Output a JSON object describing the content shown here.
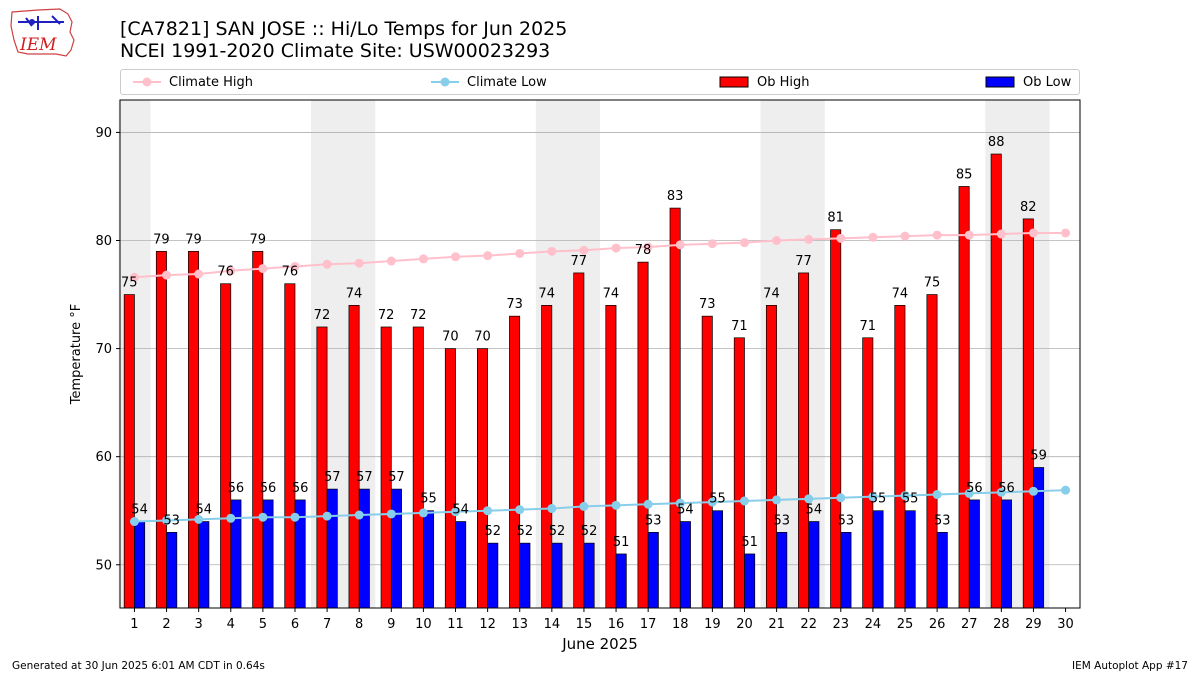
{
  "header": {
    "title_line1": "[CA7821] SAN JOSE :: Hi/Lo Temps for Jun 2025",
    "title_line2": "NCEI 1991-2020 Climate Site: USW00023293",
    "logo_text": "IEM"
  },
  "legend": {
    "climate_high": "Climate High",
    "climate_low": "Climate Low",
    "ob_high": "Ob High",
    "ob_low": "Ob Low"
  },
  "footer": {
    "left": "Generated at 30 Jun 2025 6:01 AM CDT in 0.64s",
    "right": "IEM Autoplot App #17"
  },
  "colors": {
    "ob_high": "#ff0000",
    "ob_low": "#0000ff",
    "climate_high": "#ffc0cb",
    "climate_low": "#87ceeb",
    "weekend_shade": "#eeeeee",
    "grid": "#b0b0b0"
  },
  "chart_data": {
    "type": "bar",
    "xlabel": "June 2025",
    "ylabel": "Temperature °F",
    "ylim": [
      46,
      93
    ],
    "yticks": [
      50,
      60,
      70,
      80,
      90
    ],
    "grid": "horizontal",
    "legend_position": "top",
    "days": [
      1,
      2,
      3,
      4,
      5,
      6,
      7,
      8,
      9,
      10,
      11,
      12,
      13,
      14,
      15,
      16,
      17,
      18,
      19,
      20,
      21,
      22,
      23,
      24,
      25,
      26,
      27,
      28,
      29,
      30
    ],
    "weekend_bands": [
      [
        1,
        1
      ],
      [
        7,
        8
      ],
      [
        14,
        15
      ],
      [
        21,
        22
      ],
      [
        28,
        29
      ]
    ],
    "series": [
      {
        "name": "Ob High",
        "kind": "bar",
        "values": [
          75,
          79,
          79,
          76,
          79,
          76,
          72,
          74,
          72,
          72,
          70,
          70,
          73,
          74,
          77,
          74,
          78,
          83,
          73,
          71,
          74,
          77,
          81,
          71,
          74,
          75,
          85,
          88,
          82
        ]
      },
      {
        "name": "Ob Low",
        "kind": "bar",
        "values": [
          54,
          53,
          54,
          56,
          56,
          56,
          57,
          57,
          57,
          55,
          54,
          52,
          52,
          52,
          52,
          51,
          53,
          54,
          55,
          51,
          53,
          54,
          53,
          55,
          55,
          53,
          56,
          56,
          59
        ]
      },
      {
        "name": "Climate High",
        "kind": "line",
        "values": [
          76.6,
          76.8,
          76.9,
          77.2,
          77.4,
          77.6,
          77.8,
          77.9,
          78.1,
          78.3,
          78.5,
          78.6,
          78.8,
          79.0,
          79.1,
          79.3,
          79.4,
          79.6,
          79.7,
          79.8,
          80.0,
          80.1,
          80.2,
          80.3,
          80.4,
          80.5,
          80.5,
          80.6,
          80.7,
          80.7
        ]
      },
      {
        "name": "Climate Low",
        "kind": "line",
        "values": [
          54.0,
          54.1,
          54.2,
          54.3,
          54.4,
          54.4,
          54.5,
          54.6,
          54.7,
          54.8,
          54.9,
          55.0,
          55.1,
          55.2,
          55.4,
          55.5,
          55.6,
          55.7,
          55.8,
          55.9,
          56.0,
          56.1,
          56.2,
          56.3,
          56.4,
          56.5,
          56.6,
          56.7,
          56.8,
          56.9
        ]
      }
    ]
  }
}
